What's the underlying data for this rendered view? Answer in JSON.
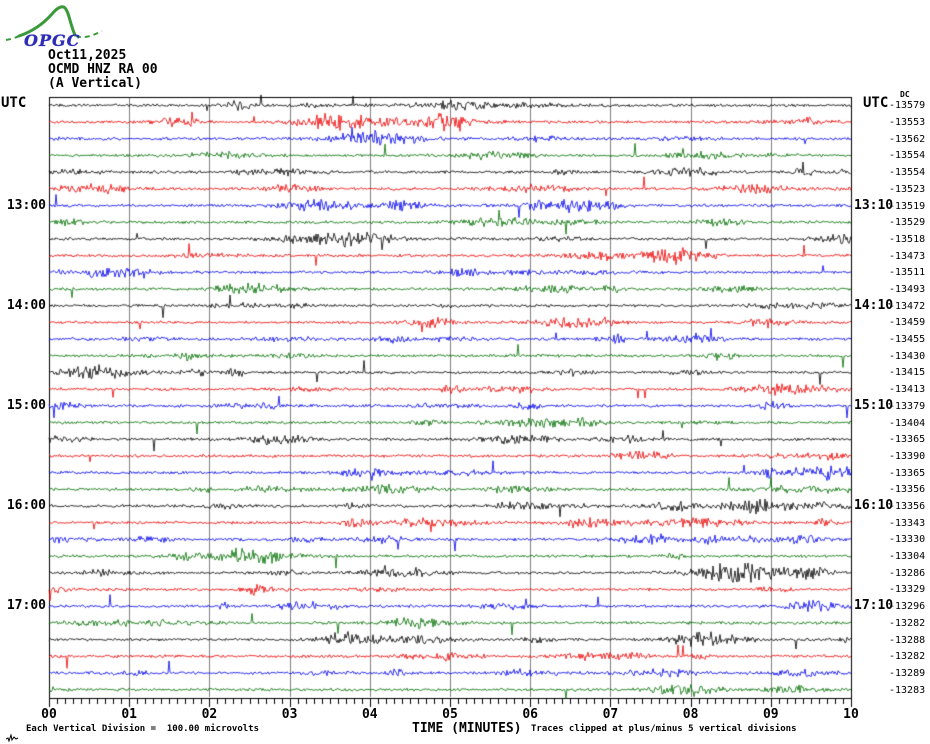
{
  "page": {
    "background": "#ffffff"
  },
  "logo": {
    "text": "OPGC",
    "curve_color": "#3a9a3a",
    "text_color": "#2d2db8"
  },
  "header": {
    "date": "Oct11,2025",
    "station": "OCMD HNZ RA 00",
    "channel": "(A Vertical)"
  },
  "axis": {
    "left_title": "UTC",
    "right_title": "UTC"
  },
  "chart_data": {
    "type": "line",
    "kind": "helicorder-seismogram-36-rows",
    "title": "OCMD HNZ RA 00 (A Vertical) Oct11,2025",
    "x_label": "TIME (MINUTES)",
    "x_ticks": [
      "00",
      "01",
      "02",
      "03",
      "04",
      "05",
      "06",
      "07",
      "08",
      "09",
      "10"
    ],
    "x_range_minutes": [
      0,
      10
    ],
    "x_minor_tick_minutes": 0.1,
    "row_count": 36,
    "minutes_per_row": 10,
    "row_colors_cycle": [
      "#000000",
      "#ee0000",
      "#0000ee",
      "#006e00"
    ],
    "grid_color": "#808080",
    "grid": "vertical-minute-lines",
    "legend_position": "none",
    "left_time_labels": [
      {
        "row": 6,
        "label": "13:00"
      },
      {
        "row": 12,
        "label": "14:00"
      },
      {
        "row": 18,
        "label": "15:00"
      },
      {
        "row": 24,
        "label": "16:00"
      },
      {
        "row": 30,
        "label": "17:00"
      }
    ],
    "right_time_labels": [
      {
        "row": 6,
        "label": "13:10"
      },
      {
        "row": 12,
        "label": "14:10"
      },
      {
        "row": 18,
        "label": "15:10"
      },
      {
        "row": 24,
        "label": "16:10"
      },
      {
        "row": 30,
        "label": "17:10"
      }
    ],
    "dc_label": "DC",
    "dc_offsets": [
      -13579,
      -13553,
      -13562,
      -13554,
      -13554,
      -13523,
      -13519,
      -13529,
      -13518,
      -13473,
      -13511,
      -13493,
      -13472,
      -13459,
      -13455,
      -13430,
      -13415,
      -13413,
      -13379,
      -13404,
      -13365,
      -13390,
      -13365,
      -13356,
      -13356,
      -13343,
      -13330,
      -13304,
      -13286,
      -13329,
      -13296,
      -13282,
      -13288,
      -13282,
      -13289,
      -13283
    ],
    "footnote_scale": "Each Vertical Division =  100.00 microvolts",
    "footnote_clip": "Traces clipped at plus/minus 5 vertical divisions",
    "trace_character": "continuous background noise with intermittent bursts, amplitudes well under clip level"
  }
}
